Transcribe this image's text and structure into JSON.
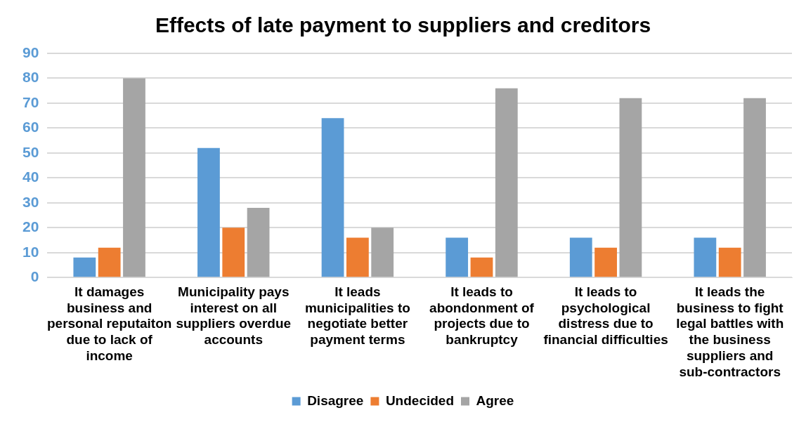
{
  "chart_data": {
    "type": "bar",
    "title": "Effects of late payment to suppliers and creditors",
    "categories": [
      "It damages business and personal reputaiton due to lack of income",
      "Municipality pays interest on all suppliers overdue accounts",
      "It leads municipalities to negotiate better payment terms",
      "It leads to abondonment of projects due to bankruptcy",
      "It leads to psychological distress due to financial difficulties",
      "It leads the business to fight legal battles with the business suppliers and sub-contractors"
    ],
    "series": [
      {
        "name": "Disagree",
        "color": "#5b9bd5",
        "values": [
          8,
          52,
          64,
          16,
          16,
          16
        ]
      },
      {
        "name": "Undecided",
        "color": "#ed7d31",
        "values": [
          12,
          20,
          16,
          8,
          12,
          12
        ]
      },
      {
        "name": "Agree",
        "color": "#a5a5a5",
        "values": [
          80,
          28,
          20,
          76,
          72,
          72
        ]
      }
    ],
    "ylim": [
      0,
      90
    ],
    "yticks": [
      0,
      10,
      20,
      30,
      40,
      50,
      60,
      70,
      80,
      90
    ],
    "grid": "y",
    "legend": "bottom"
  }
}
